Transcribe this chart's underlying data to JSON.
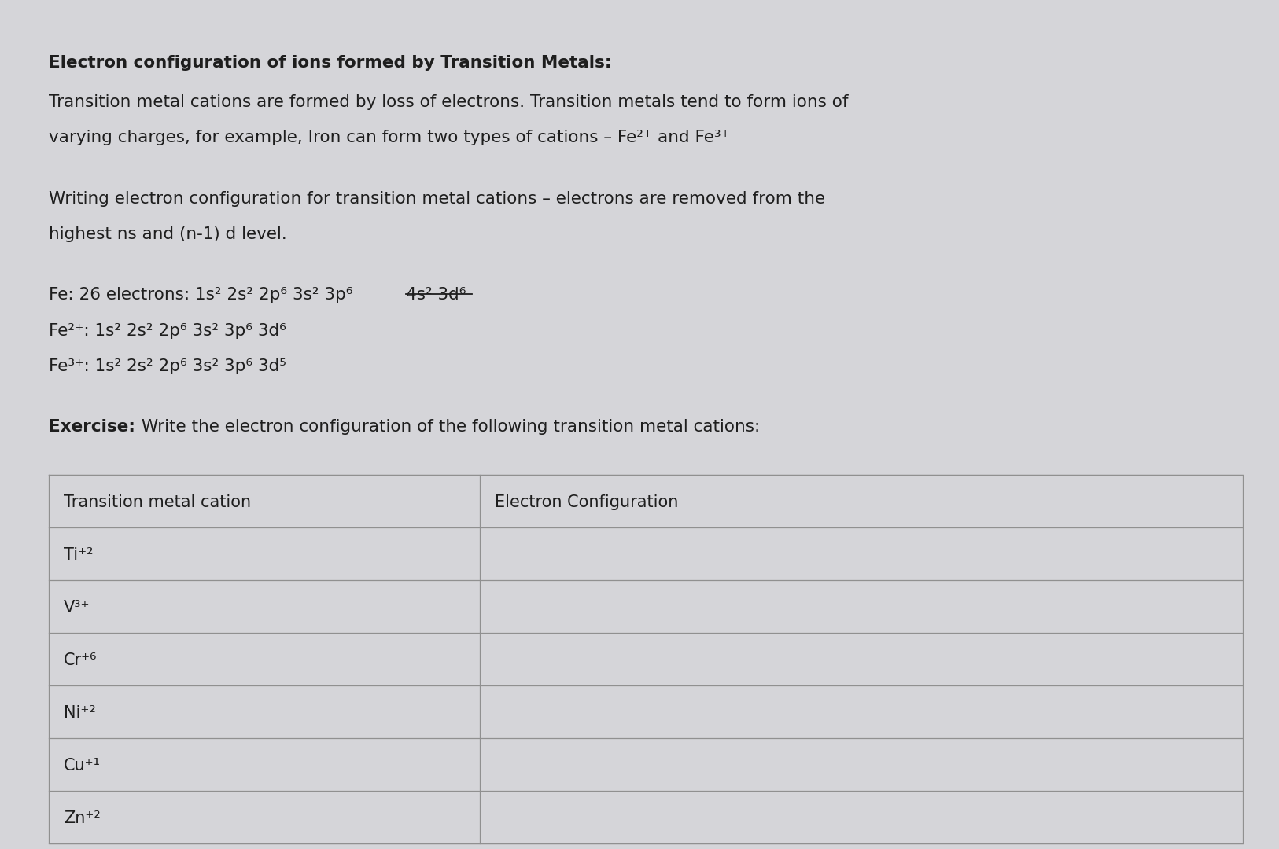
{
  "bg_color": "#d5d5d9",
  "text_color": "#1e1e1e",
  "title_bold": "Electron configuration of ions formed by Transition Metals:",
  "para1_line1": "Transition metal cations are formed by loss of electrons. Transition metals tend to form ions of",
  "para1_line2": "varying charges, for example, Iron can form two types of cations – Fe²⁺ and Fe³⁺",
  "para2_line1": "Writing electron configuration for transition metal cations – electrons are removed from the",
  "para2_line2": "highest ns and (n-1) d level.",
  "fe_line1_pre": "Fe: 26 electrons: 1s² 2s² 2p⁶ 3s² 3p⁶ ",
  "fe_line1_strike": "4s² 3d⁶",
  "fe_line2": "Fe²⁺: 1s² 2s² 2p⁶ 3s² 3p⁶ 3d⁶",
  "fe_line3": "Fe³⁺: 1s² 2s² 2p⁶ 3s² 3p⁶ 3d⁵",
  "exercise_bold": "Exercise:",
  "exercise_rest": " Write the electron configuration of the following transition metal cations:",
  "table_header": [
    "Transition metal cation",
    "Electron Configuration"
  ],
  "table_rows": [
    [
      "Ti⁺²",
      ""
    ],
    [
      "V³⁺",
      ""
    ],
    [
      "Cr⁺⁶",
      ""
    ],
    [
      "Ni⁺²",
      ""
    ],
    [
      "Cu⁺¹",
      ""
    ],
    [
      "Zn⁺²",
      ""
    ]
  ],
  "table_border_color": "#909090",
  "figsize": [
    16.26,
    10.8
  ],
  "dpi": 100
}
